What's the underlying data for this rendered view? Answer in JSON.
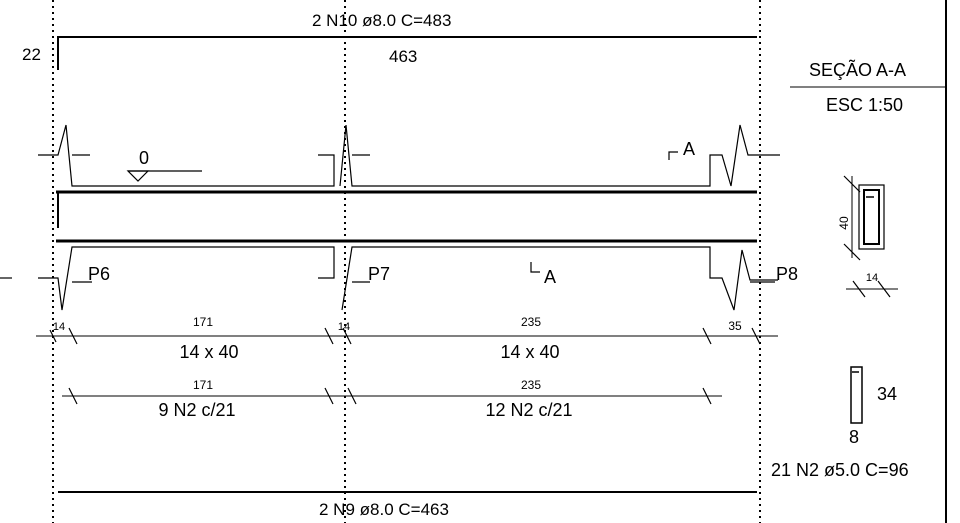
{
  "top_bar": {
    "callout": "2 N10 ø8.0  C=483",
    "left_hook": "22",
    "length": "463"
  },
  "bottom_bar": {
    "callout": "2 N9 ø8.0  C=463"
  },
  "section": {
    "title": "SEÇÃO A-A",
    "scale": "ESC 1:50",
    "height": "40",
    "width": "14",
    "cut_mark": "A"
  },
  "level_mark": "0",
  "pillars": [
    "P6",
    "P7",
    "P8"
  ],
  "dimensions": {
    "row1": [
      "14",
      "171",
      "14",
      "235",
      "35"
    ],
    "row1_sections": [
      "14 x 40",
      "14 x 40"
    ],
    "row2": [
      "171",
      "235"
    ],
    "row2_stirrups": [
      "9 N2 c/21",
      "12 N2 c/21"
    ]
  },
  "stirrup": {
    "height": "34",
    "width": "8",
    "callout": "21 N2 ø5.0  C=96"
  }
}
